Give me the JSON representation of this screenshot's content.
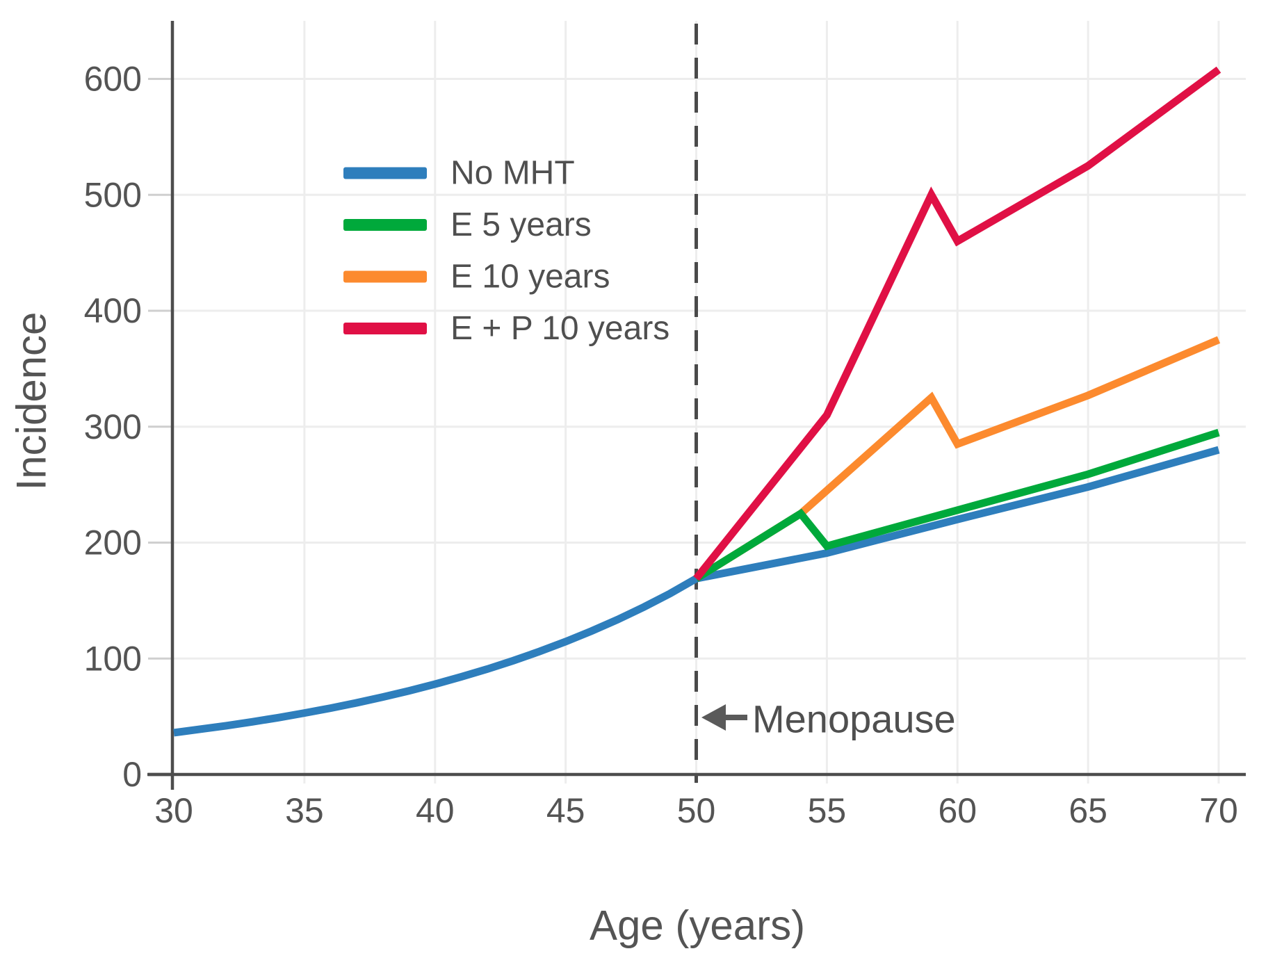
{
  "chart_data": {
    "type": "line",
    "title": "",
    "xlabel": "Age (years)",
    "ylabel": "Incidence",
    "xlim": [
      30,
      70
    ],
    "ylim": [
      0,
      600
    ],
    "x_ticks": [
      30,
      35,
      40,
      45,
      50,
      55,
      60,
      65,
      70
    ],
    "y_ticks": [
      0,
      100,
      200,
      300,
      400,
      500,
      600
    ],
    "grid": true,
    "legend_position": "upper-left-inside",
    "reference_line": {
      "type": "vertical-dashed",
      "x": 50
    },
    "annotation": {
      "text": "Menopause",
      "arrow_points_to_x": 50,
      "y_value": 50
    },
    "series": [
      {
        "name": "No MHT",
        "color": "#2e7ebc",
        "points": [
          [
            30,
            36
          ],
          [
            31,
            39
          ],
          [
            32,
            42
          ],
          [
            33,
            45.4
          ],
          [
            34,
            49
          ],
          [
            35,
            53
          ],
          [
            36,
            57.2
          ],
          [
            37,
            61.8
          ],
          [
            38,
            66.8
          ],
          [
            39,
            72.1
          ],
          [
            40,
            77.9
          ],
          [
            41,
            84.2
          ],
          [
            42,
            90.9
          ],
          [
            43,
            98.2
          ],
          [
            44,
            106.1
          ],
          [
            45,
            114.6
          ],
          [
            46,
            123.8
          ],
          [
            47,
            133.7
          ],
          [
            48,
            144.5
          ],
          [
            49,
            156.1
          ],
          [
            50,
            169
          ],
          [
            55,
            191
          ],
          [
            60,
            220
          ],
          [
            65,
            248
          ],
          [
            70,
            280
          ]
        ]
      },
      {
        "name": "E 5 years",
        "color": "#00a93b",
        "points": [
          [
            50,
            169
          ],
          [
            54,
            225
          ],
          [
            55,
            197
          ],
          [
            60,
            228
          ],
          [
            65,
            259
          ],
          [
            70,
            295
          ]
        ]
      },
      {
        "name": "E 10 years",
        "color": "#fc8a2e",
        "points": [
          [
            50,
            169
          ],
          [
            54,
            225
          ],
          [
            59,
            325
          ],
          [
            60,
            285
          ],
          [
            65,
            327
          ],
          [
            70,
            375
          ]
        ]
      },
      {
        "name": "E + P 10 years",
        "color": "#e01045",
        "points": [
          [
            50,
            169
          ],
          [
            55,
            310
          ],
          [
            59,
            500
          ],
          [
            60,
            460
          ],
          [
            65,
            525
          ],
          [
            70,
            608
          ]
        ]
      }
    ]
  },
  "colors": {
    "axis": "#4d4d4d",
    "grid": "#ededed",
    "tick": "#cfcfcf",
    "text": "#545454",
    "annotation_arrow": "#5a5a5a",
    "reference_line": "#4a4a4a",
    "background": "#ffffff"
  }
}
